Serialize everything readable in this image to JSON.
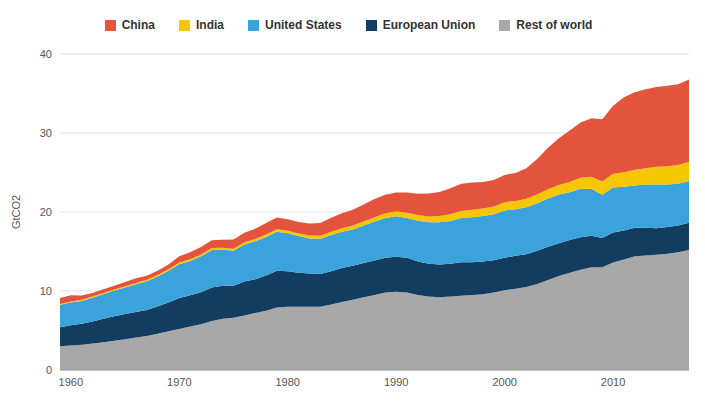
{
  "chart_data": {
    "type": "area",
    "y_label": "GtCO2",
    "stacked": true,
    "grid": true,
    "legend": "top",
    "x": [
      1959,
      1960,
      1961,
      1962,
      1963,
      1964,
      1965,
      1966,
      1967,
      1968,
      1969,
      1970,
      1971,
      1972,
      1973,
      1974,
      1975,
      1976,
      1977,
      1978,
      1979,
      1980,
      1981,
      1982,
      1983,
      1984,
      1985,
      1986,
      1987,
      1988,
      1989,
      1990,
      1991,
      1992,
      1993,
      1994,
      1995,
      1996,
      1997,
      1998,
      1999,
      2000,
      2001,
      2002,
      2003,
      2004,
      2005,
      2006,
      2007,
      2008,
      2009,
      2010,
      2011,
      2012,
      2013,
      2014,
      2015,
      2016,
      2017
    ],
    "xlim": [
      1959,
      2017
    ],
    "xticks": [
      1960,
      1970,
      1980,
      1990,
      2000,
      2010
    ],
    "ylim": [
      0,
      40
    ],
    "yticks": [
      0,
      10,
      20,
      30,
      40
    ],
    "series": [
      {
        "name": "China",
        "color": "#e4533b",
        "values": [
          0.75,
          0.8,
          0.55,
          0.45,
          0.46,
          0.48,
          0.52,
          0.58,
          0.5,
          0.53,
          0.63,
          0.8,
          0.9,
          0.95,
          1.0,
          1.0,
          1.15,
          1.2,
          1.3,
          1.46,
          1.49,
          1.47,
          1.45,
          1.55,
          1.63,
          1.75,
          1.9,
          2.0,
          2.15,
          2.3,
          2.35,
          2.4,
          2.55,
          2.7,
          2.9,
          3.05,
          3.3,
          3.45,
          3.45,
          3.35,
          3.35,
          3.45,
          3.55,
          3.85,
          4.5,
          5.25,
          5.9,
          6.5,
          7.0,
          7.4,
          7.9,
          8.6,
          9.5,
          9.8,
          10.0,
          10.1,
          10.2,
          10.2,
          10.4
        ]
      },
      {
        "name": "India",
        "color": "#f6c700",
        "values": [
          0.11,
          0.12,
          0.13,
          0.14,
          0.15,
          0.15,
          0.16,
          0.17,
          0.18,
          0.19,
          0.19,
          0.2,
          0.21,
          0.22,
          0.23,
          0.24,
          0.26,
          0.27,
          0.28,
          0.29,
          0.31,
          0.32,
          0.34,
          0.36,
          0.39,
          0.41,
          0.45,
          0.48,
          0.51,
          0.55,
          0.59,
          0.62,
          0.67,
          0.71,
          0.74,
          0.79,
          0.85,
          0.89,
          0.93,
          0.95,
          1.0,
          1.03,
          1.05,
          1.08,
          1.11,
          1.18,
          1.23,
          1.31,
          1.41,
          1.54,
          1.67,
          1.75,
          1.84,
          2.0,
          2.07,
          2.24,
          2.3,
          2.39,
          2.45
        ]
      },
      {
        "name": "United States",
        "color": "#3ba3dc",
        "values": [
          2.85,
          2.9,
          2.9,
          3.0,
          3.1,
          3.25,
          3.35,
          3.5,
          3.65,
          3.8,
          4.0,
          4.3,
          4.35,
          4.55,
          4.75,
          4.6,
          4.45,
          4.7,
          4.8,
          4.9,
          4.95,
          4.8,
          4.65,
          4.45,
          4.45,
          4.6,
          4.6,
          4.6,
          4.75,
          4.95,
          5.05,
          5.1,
          5.05,
          5.15,
          5.25,
          5.35,
          5.4,
          5.6,
          5.7,
          5.75,
          5.8,
          6.0,
          5.9,
          5.95,
          6.0,
          6.1,
          6.15,
          6.05,
          6.13,
          5.93,
          5.48,
          5.7,
          5.55,
          5.35,
          5.48,
          5.53,
          5.38,
          5.27,
          5.27
        ]
      },
      {
        "name": "European Union",
        "color": "#123d60",
        "values": [
          2.4,
          2.55,
          2.65,
          2.8,
          3.0,
          3.1,
          3.2,
          3.25,
          3.3,
          3.45,
          3.65,
          3.9,
          3.95,
          4.05,
          4.25,
          4.15,
          4.05,
          4.3,
          4.3,
          4.45,
          4.65,
          4.5,
          4.3,
          4.2,
          4.15,
          4.2,
          4.3,
          4.3,
          4.35,
          4.35,
          4.4,
          4.45,
          4.4,
          4.25,
          4.15,
          4.15,
          4.15,
          4.25,
          4.15,
          4.15,
          4.1,
          4.1,
          4.15,
          4.15,
          4.2,
          4.2,
          4.15,
          4.15,
          4.1,
          4.0,
          3.7,
          3.8,
          3.65,
          3.6,
          3.5,
          3.35,
          3.4,
          3.4,
          3.45
        ]
      },
      {
        "name": "Rest of world",
        "color": "#a8a8a8",
        "values": [
          3.0,
          3.1,
          3.2,
          3.35,
          3.5,
          3.7,
          3.9,
          4.1,
          4.3,
          4.6,
          4.9,
          5.2,
          5.5,
          5.8,
          6.2,
          6.5,
          6.6,
          6.9,
          7.2,
          7.5,
          7.9,
          8.0,
          8.0,
          8.0,
          8.0,
          8.3,
          8.6,
          8.9,
          9.2,
          9.5,
          9.8,
          9.9,
          9.8,
          9.5,
          9.3,
          9.2,
          9.3,
          9.4,
          9.5,
          9.6,
          9.8,
          10.1,
          10.3,
          10.5,
          10.9,
          11.4,
          11.9,
          12.3,
          12.7,
          13.0,
          13.0,
          13.6,
          14.0,
          14.4,
          14.5,
          14.6,
          14.7,
          14.9,
          15.2
        ]
      }
    ]
  }
}
